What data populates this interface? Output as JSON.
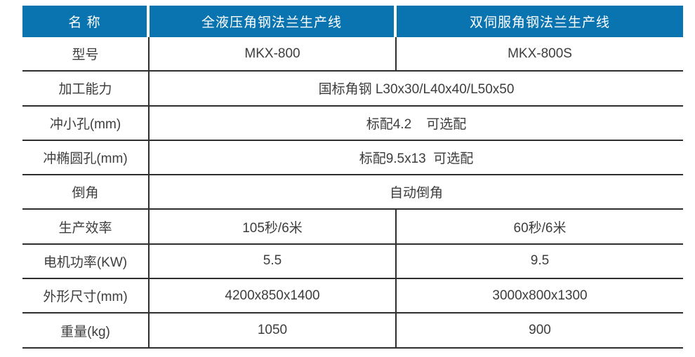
{
  "table": {
    "header": {
      "name_col": "名 称",
      "product_a": "全液压角钢法兰生产线",
      "product_b": "双伺服角钢法兰生产线"
    },
    "rows": [
      {
        "label": "型号",
        "col2": "MKX-800",
        "col3": "MKX-800S"
      },
      {
        "label": "加工能力",
        "value": "国标角钢 L30x30/L40x40/L50x50"
      },
      {
        "label": "冲小孔(mm)",
        "value": "标配4.2    可选配"
      },
      {
        "label": "冲椭圆孔(mm)",
        "value": "标配9.5x13  可选配"
      },
      {
        "label": "倒角",
        "value": "自动倒角"
      },
      {
        "label": "生产效率",
        "col2": "105秒/6米",
        "col3": "60秒/6米"
      },
      {
        "label": "电机功率(KW)",
        "col2": "5.5",
        "col3": "9.5"
      },
      {
        "label": "外形尺寸(mm)",
        "col2": "4200x850x1400",
        "col3": "3000x800x1300"
      },
      {
        "label": "重量(kg)",
        "col2": "1050",
        "col3": "900"
      }
    ],
    "colors": {
      "header_bg": "#0a74b0",
      "header_text": "#ffffff",
      "body_text": "#3d3d3d",
      "grid_line": "#2e2e2e",
      "background": "#ffffff"
    }
  }
}
